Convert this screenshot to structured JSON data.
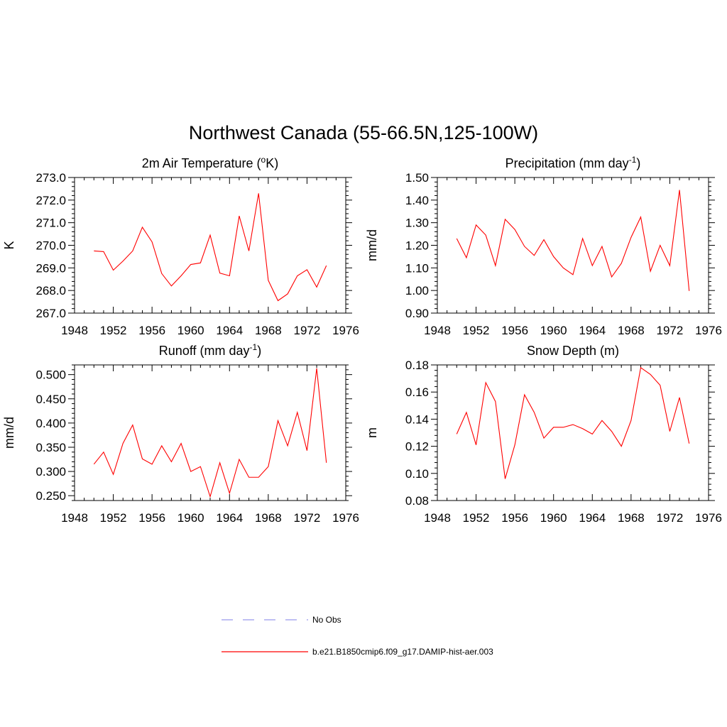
{
  "title": "Northwest Canada (55-66.5N,125-100W)",
  "colors": {
    "model_line": "#ff0000",
    "obs_line": "#9999ee"
  },
  "legend": {
    "obs": "No Obs",
    "model": "b.e21.B1850cmip6.f09_g17.DAMIP-hist-aer.003"
  },
  "chart_data": [
    {
      "type": "line",
      "title_main": "2m Air Temperature (",
      "title_sup1": "o",
      "title_mid": "K)",
      "ylabel": "K",
      "xlim": [
        1948,
        1976
      ],
      "ylim": [
        267.0,
        273.0
      ],
      "x_ticks": [
        1948,
        1952,
        1956,
        1960,
        1964,
        1968,
        1972,
        1976
      ],
      "y_ticks": [
        "267.0",
        "268.0",
        "269.0",
        "270.0",
        "271.0",
        "272.0",
        "273.0"
      ],
      "x": [
        1950,
        1951,
        1952,
        1953,
        1954,
        1955,
        1956,
        1957,
        1958,
        1959,
        1960,
        1961,
        1962,
        1963,
        1964,
        1965,
        1966,
        1967,
        1968,
        1969,
        1970,
        1971,
        1972,
        1973,
        1974
      ],
      "series": [
        {
          "values": [
            269.75,
            269.72,
            268.9,
            269.3,
            269.75,
            270.8,
            270.15,
            268.75,
            268.2,
            268.65,
            269.15,
            269.22,
            270.45,
            268.77,
            268.65,
            271.3,
            269.75,
            272.3,
            268.45,
            267.55,
            267.85,
            268.65,
            268.92,
            268.15,
            269.1
          ]
        }
      ]
    },
    {
      "type": "line",
      "title_main": "Precipitation (mm day",
      "title_sup1": "-1",
      "title_mid": ")",
      "ylabel": "mm/d",
      "xlim": [
        1948,
        1976
      ],
      "ylim": [
        0.9,
        1.5
      ],
      "x_ticks": [
        1948,
        1952,
        1956,
        1960,
        1964,
        1968,
        1972,
        1976
      ],
      "y_ticks": [
        "0.90",
        "1.00",
        "1.10",
        "1.20",
        "1.30",
        "1.40",
        "1.50"
      ],
      "x": [
        1950,
        1951,
        1952,
        1953,
        1954,
        1955,
        1956,
        1957,
        1958,
        1959,
        1960,
        1961,
        1962,
        1963,
        1964,
        1965,
        1966,
        1967,
        1968,
        1969,
        1970,
        1971,
        1972,
        1973,
        1974
      ],
      "series": [
        {
          "values": [
            1.23,
            1.145,
            1.29,
            1.245,
            1.11,
            1.315,
            1.27,
            1.195,
            1.155,
            1.225,
            1.15,
            1.1,
            1.07,
            1.23,
            1.11,
            1.195,
            1.06,
            1.12,
            1.235,
            1.325,
            1.085,
            1.2,
            1.11,
            1.445,
            0.998
          ]
        }
      ]
    },
    {
      "type": "line",
      "title_main": "Runoff (mm day",
      "title_sup1": "-1",
      "title_mid": ")",
      "ylabel": "mm/d",
      "xlim": [
        1948,
        1976
      ],
      "ylim": [
        0.24,
        0.52
      ],
      "x_ticks": [
        1948,
        1952,
        1956,
        1960,
        1964,
        1968,
        1972,
        1976
      ],
      "y_ticks": [
        "0.250",
        "0.300",
        "0.350",
        "0.400",
        "0.450",
        "0.500"
      ],
      "x": [
        1950,
        1951,
        1952,
        1953,
        1954,
        1955,
        1956,
        1957,
        1958,
        1959,
        1960,
        1961,
        1962,
        1963,
        1964,
        1965,
        1966,
        1967,
        1968,
        1969,
        1970,
        1971,
        1972,
        1973,
        1974
      ],
      "series": [
        {
          "values": [
            0.315,
            0.34,
            0.294,
            0.358,
            0.396,
            0.326,
            0.315,
            0.353,
            0.32,
            0.358,
            0.3,
            0.31,
            0.248,
            0.318,
            0.255,
            0.325,
            0.288,
            0.288,
            0.31,
            0.405,
            0.353,
            0.422,
            0.343,
            0.513,
            0.318
          ]
        }
      ]
    },
    {
      "type": "line",
      "title_main": "Snow Depth (m)",
      "title_sup1": "",
      "title_mid": "",
      "ylabel": "m",
      "xlim": [
        1948,
        1976
      ],
      "ylim": [
        0.08,
        0.18
      ],
      "x_ticks": [
        1948,
        1952,
        1956,
        1960,
        1964,
        1968,
        1972,
        1976
      ],
      "y_ticks": [
        "0.08",
        "0.10",
        "0.12",
        "0.14",
        "0.16",
        "0.18"
      ],
      "x": [
        1950,
        1951,
        1952,
        1953,
        1954,
        1955,
        1956,
        1957,
        1958,
        1959,
        1960,
        1961,
        1962,
        1963,
        1964,
        1965,
        1966,
        1967,
        1968,
        1969,
        1970,
        1971,
        1972,
        1973,
        1974
      ],
      "series": [
        {
          "values": [
            0.129,
            0.145,
            0.121,
            0.167,
            0.153,
            0.096,
            0.121,
            0.158,
            0.145,
            0.126,
            0.134,
            0.134,
            0.136,
            0.133,
            0.129,
            0.139,
            0.131,
            0.12,
            0.139,
            0.178,
            0.173,
            0.165,
            0.131,
            0.156,
            0.122
          ]
        }
      ]
    }
  ]
}
